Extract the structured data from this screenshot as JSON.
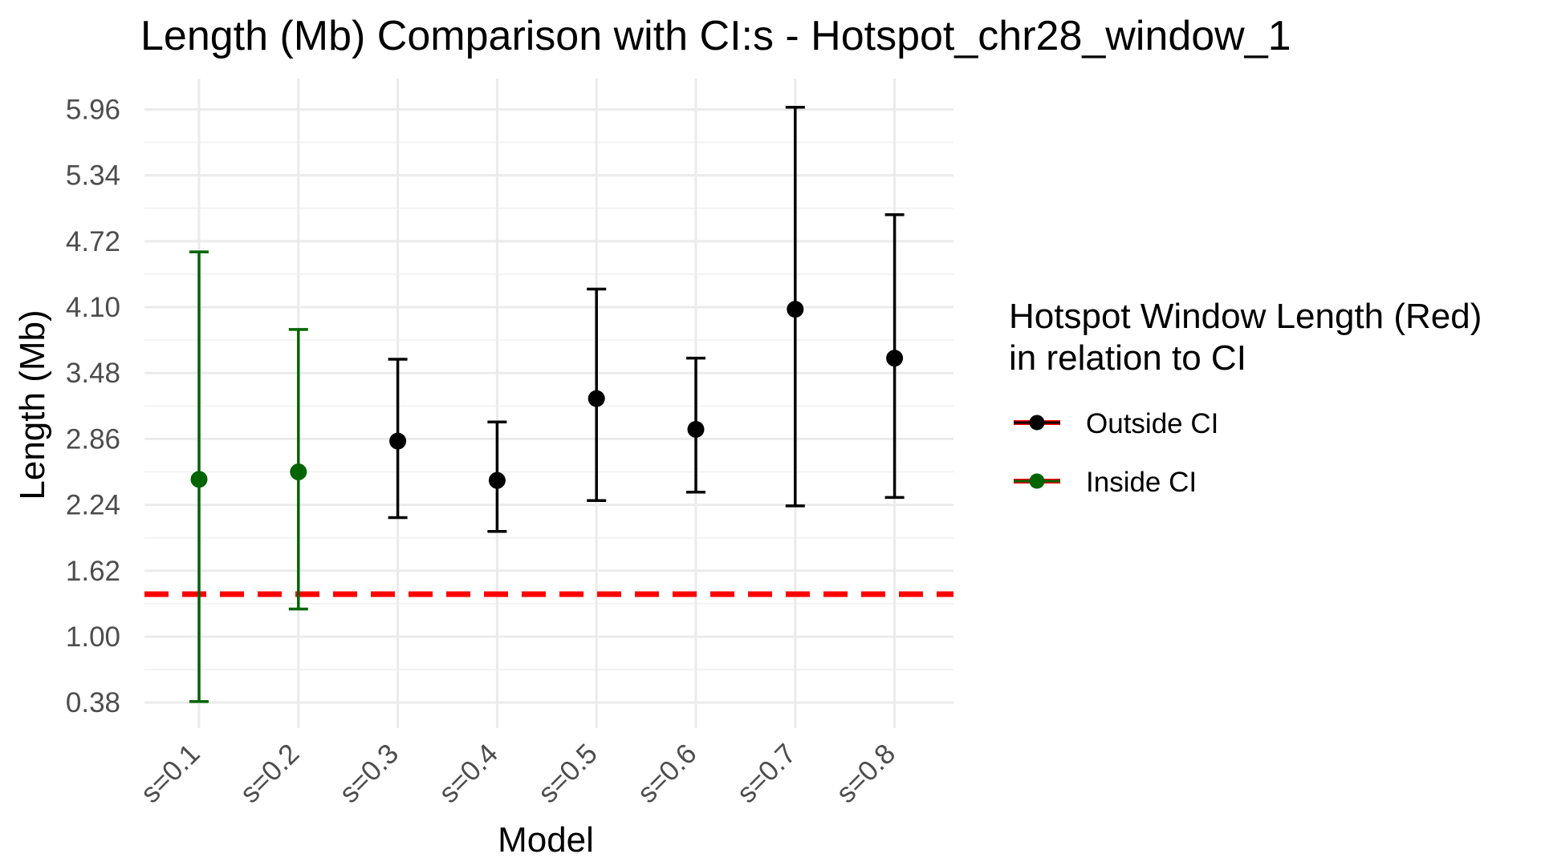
{
  "chart_data": {
    "type": "scatter",
    "title": "Length (Mb) Comparison with CI:s -  Hotspot_chr28_window_1",
    "xlabel": "Model",
    "ylabel": "Length (Mb)",
    "categories": [
      "s=0.1",
      "s=0.2",
      "s=0.3",
      "s=0.4",
      "s=0.5",
      "s=0.6",
      "s=0.7",
      "s=0.8"
    ],
    "y_ticks": [
      "0.38",
      "1.00",
      "1.62",
      "2.24",
      "2.86",
      "3.48",
      "4.10",
      "4.72",
      "5.34",
      "5.96"
    ],
    "ylim": [
      0.14,
      6.25
    ],
    "grid": true,
    "series": [
      {
        "categories": [
          "s=0.1",
          "s=0.2",
          "s=0.3",
          "s=0.4",
          "s=0.5",
          "s=0.6",
          "s=0.7",
          "s=0.8"
        ],
        "values": [
          2.48,
          2.55,
          2.84,
          2.47,
          3.24,
          2.95,
          4.08,
          3.62
        ],
        "ci_lower": [
          0.39,
          1.26,
          2.12,
          1.99,
          2.28,
          2.36,
          2.23,
          2.31
        ],
        "ci_upper": [
          4.62,
          3.89,
          3.61,
          3.02,
          4.27,
          3.62,
          5.98,
          4.97
        ],
        "status": [
          "Inside CI",
          "Inside CI",
          "Outside CI",
          "Outside CI",
          "Outside CI",
          "Outside CI",
          "Outside CI",
          "Outside CI"
        ]
      }
    ],
    "reference_line": {
      "value": 1.4,
      "color": "#ff0000",
      "style": "dashed"
    },
    "legend": {
      "title_lines": [
        "Hotspot Window Length (Red)",
        "in relation to CI"
      ],
      "placement": "right",
      "entries": [
        {
          "label": "Outside CI",
          "color": "#000000"
        },
        {
          "label": "Inside CI",
          "color": "#006400"
        }
      ]
    },
    "colors": {
      "outside_ci": "#000000",
      "inside_ci": "#006400",
      "reference": "#ff0000",
      "grid_major": "#ebebeb",
      "grid_minor": "#f3f3f3"
    }
  }
}
